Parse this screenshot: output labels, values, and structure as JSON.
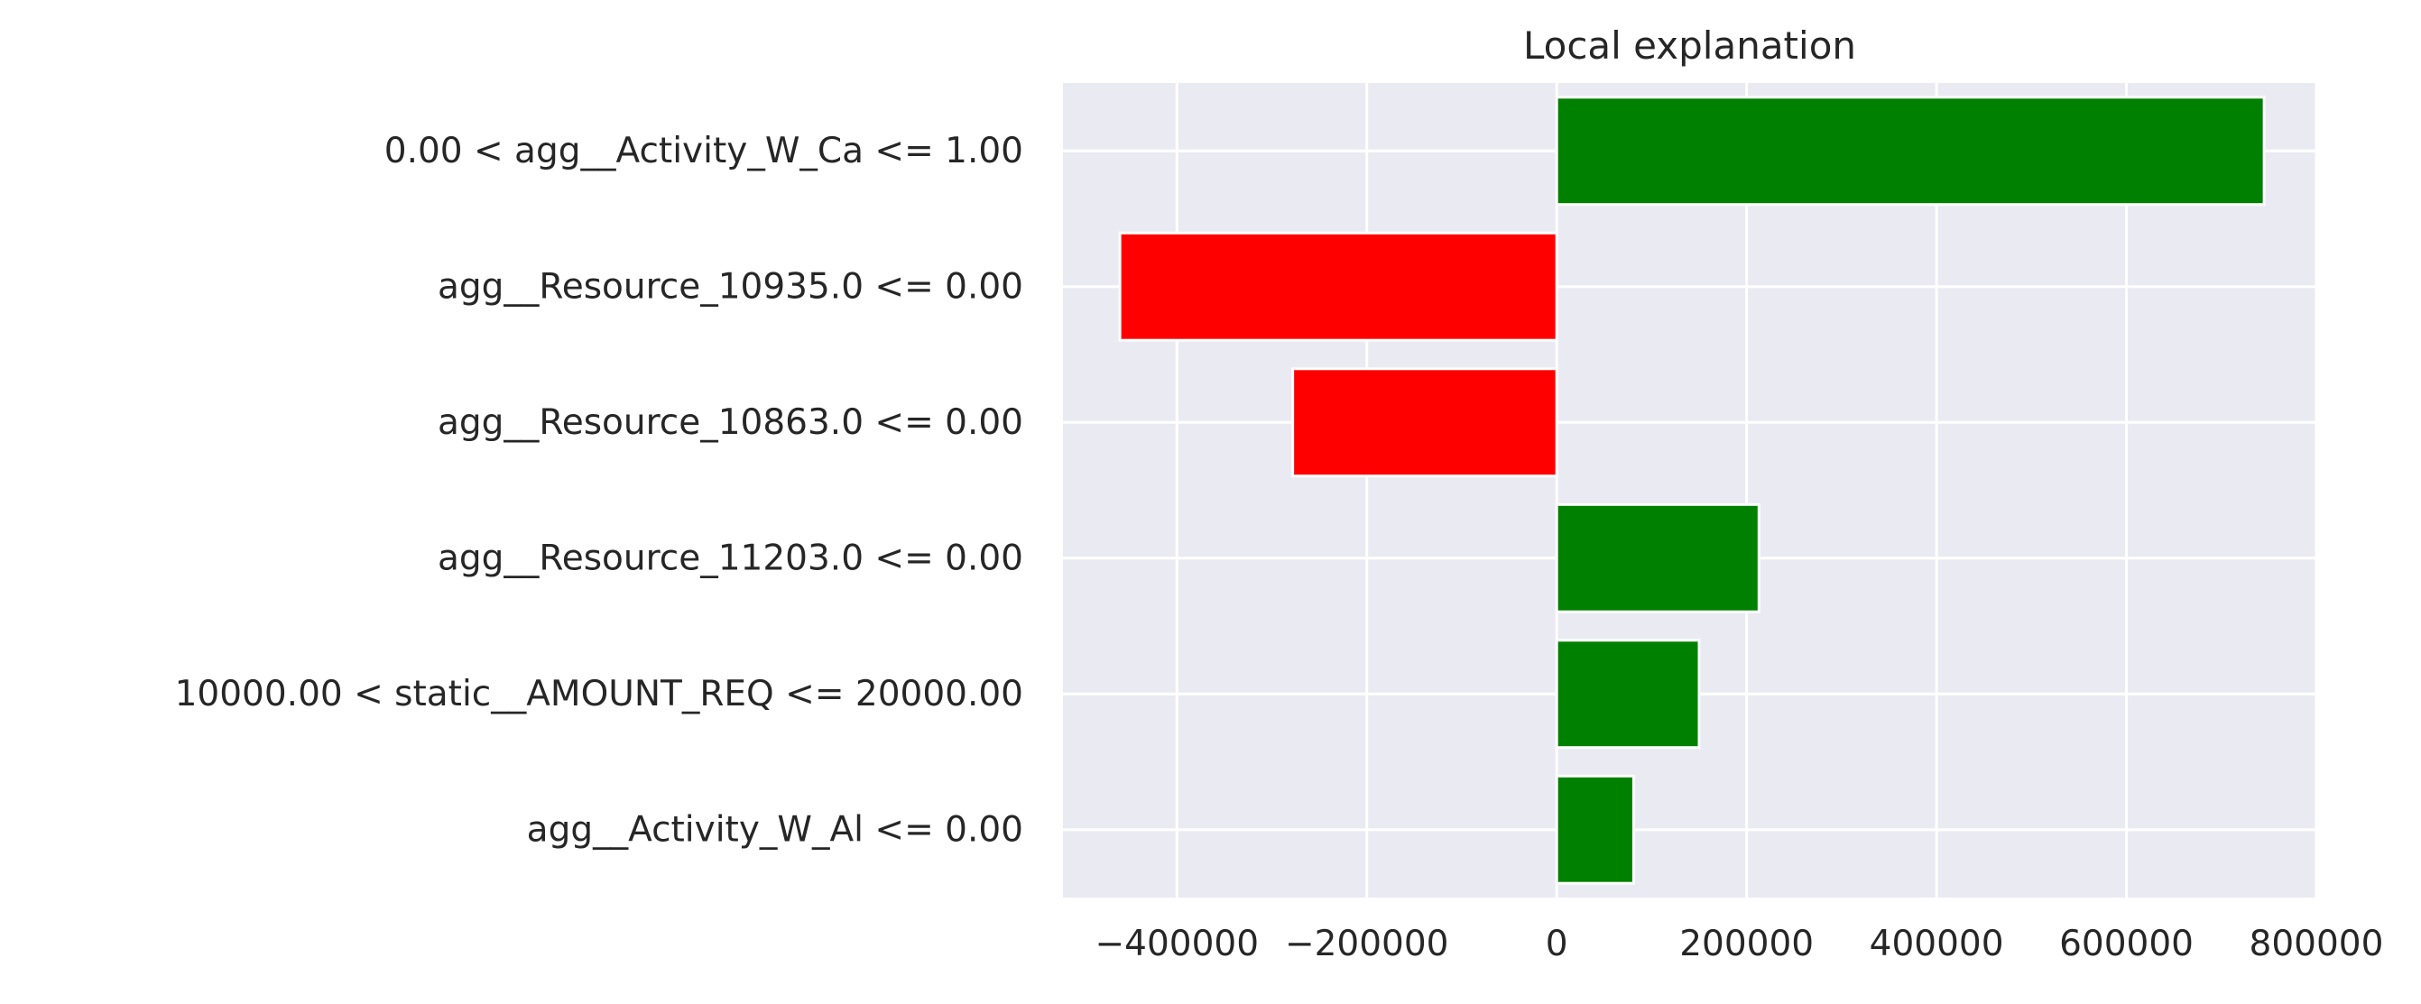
{
  "chart_data": {
    "type": "bar",
    "orientation": "horizontal",
    "title": "Local explanation",
    "xlabel": "",
    "ylabel": "",
    "xlim": [
      -520000,
      800000
    ],
    "grid": true,
    "legend": "none",
    "categories": [
      "0.00 < agg__Activity_W_Ca <= 1.00",
      "agg__Resource_10935.0 <= 0.00",
      "agg__Resource_10863.0 <= 0.00",
      "agg__Resource_11203.0 <= 0.00",
      "10000.00 < static__AMOUNT_REQ <= 20000.00",
      "agg__Activity_W_Al <= 0.00"
    ],
    "values": [
      745000,
      -460000,
      -278000,
      213000,
      150000,
      81000
    ],
    "x_ticks": [
      -400000,
      -200000,
      0,
      200000,
      400000,
      600000,
      800000
    ],
    "x_tick_labels": [
      "−400000",
      "−200000",
      "0",
      "200000",
      "400000",
      "600000",
      "800000"
    ],
    "colors": {
      "positive": "#008000",
      "negative": "#ff0000",
      "plot_background": "#eaeaf2",
      "grid": "#ffffff",
      "text": "#262626"
    }
  }
}
